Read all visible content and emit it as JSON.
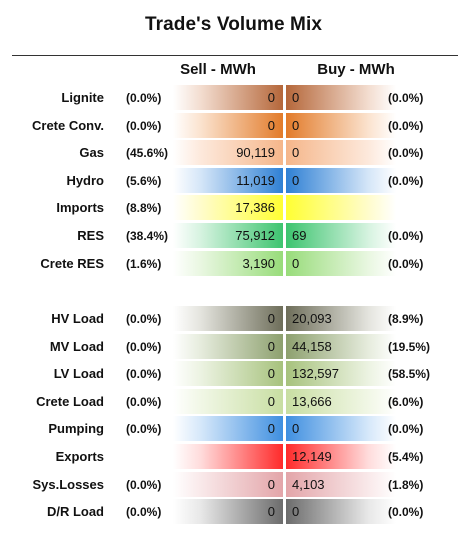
{
  "title": "Trade's Volume Mix",
  "headers": {
    "sell": "Sell - MWh",
    "buy": "Buy - MWh"
  },
  "chart_data": {
    "type": "table",
    "title": "Trade's Volume Mix",
    "columns": [
      "Sell - MWh",
      "Buy - MWh"
    ],
    "sections": [
      {
        "rows": [
          {
            "label": "Lignite",
            "sell_pct": "(0.0%)",
            "sell": "0",
            "buy": "0",
            "buy_pct": "(0.0%)",
            "color": "#b5673a",
            "light": "#f3ddd0"
          },
          {
            "label": "Crete Conv.",
            "sell_pct": "(0.0%)",
            "sell": "0",
            "buy": "0",
            "buy_pct": "(0.0%)",
            "color": "#e27b2a",
            "light": "#fbe3cf"
          },
          {
            "label": "Gas",
            "sell_pct": "(45.6%)",
            "sell": "90,119",
            "buy": "0",
            "buy_pct": "(0.0%)",
            "color": "#f5b68a",
            "light": "#fde9dc"
          },
          {
            "label": "Hydro",
            "sell_pct": "(5.6%)",
            "sell": "11,019",
            "buy": "0",
            "buy_pct": "(0.0%)",
            "color": "#2f80d4",
            "light": "#d5e6f8"
          },
          {
            "label": "Imports",
            "sell_pct": "(8.8%)",
            "sell": "17,386",
            "buy": "",
            "buy_pct": "",
            "color": "#ffff33",
            "light": "#fffccc"
          },
          {
            "label": "RES",
            "sell_pct": "(38.4%)",
            "sell": "75,912",
            "buy": "69",
            "buy_pct": "(0.0%)",
            "color": "#3dc46f",
            "light": "#d6f3e0"
          },
          {
            "label": "Crete RES",
            "sell_pct": "(1.6%)",
            "sell": "3,190",
            "buy": "0",
            "buy_pct": "(0.0%)",
            "color": "#98dc7a",
            "light": "#e9f7e1"
          }
        ]
      },
      {
        "rows": [
          {
            "label": "HV Load",
            "sell_pct": "(0.0%)",
            "sell": "0",
            "buy": "20,093",
            "buy_pct": "(8.9%)",
            "color": "#6e6e5a",
            "light": "#e4e4de"
          },
          {
            "label": "MV Load",
            "sell_pct": "(0.0%)",
            "sell": "0",
            "buy": "44,158",
            "buy_pct": "(19.5%)",
            "color": "#8da06e",
            "light": "#e6ecdd"
          },
          {
            "label": "LV Load",
            "sell_pct": "(0.0%)",
            "sell": "0",
            "buy": "132,597",
            "buy_pct": "(58.5%)",
            "color": "#a7c27d",
            "light": "#ecf3e2"
          },
          {
            "label": "Crete Load",
            "sell_pct": "(0.0%)",
            "sell": "0",
            "buy": "13,666",
            "buy_pct": "(6.0%)",
            "color": "#c8dea2",
            "light": "#f1f7e6"
          },
          {
            "label": "Pumping",
            "sell_pct": "(0.0%)",
            "sell": "0",
            "buy": "0",
            "buy_pct": "(0.0%)",
            "color": "#3f8fe0",
            "light": "#d6e8fa"
          },
          {
            "label": "Exports",
            "sell_pct": "",
            "sell": "",
            "buy": "12,149",
            "buy_pct": "(5.4%)",
            "color": "#ff2a2a",
            "light": "#ffdcdc"
          },
          {
            "label": "Sys.Losses",
            "sell_pct": "(0.0%)",
            "sell": "0",
            "buy": "4,103",
            "buy_pct": "(1.8%)",
            "color": "#e3a5a9",
            "light": "#f9e9ea"
          },
          {
            "label": "D/R Load",
            "sell_pct": "(0.0%)",
            "sell": "0",
            "buy": "0",
            "buy_pct": "(0.0%)",
            "color": "#6c6c6c",
            "light": "#e8e8e8"
          }
        ]
      }
    ]
  }
}
